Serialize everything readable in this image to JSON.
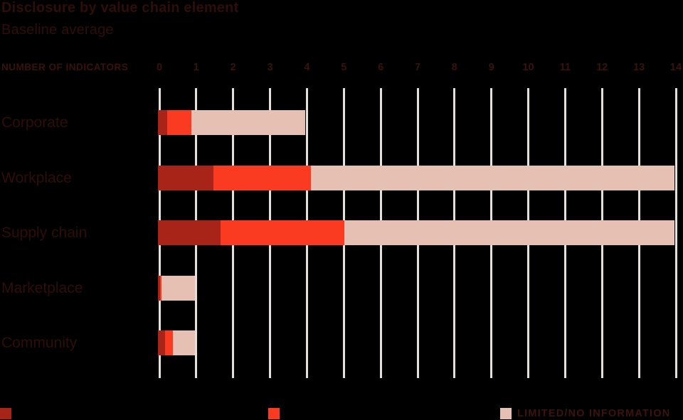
{
  "header": {
    "title": "Disclosure by value chain element",
    "subtitle": "Baseline average"
  },
  "chart_data": {
    "type": "bar",
    "orientation": "horizontal",
    "stacked": true,
    "title": "Disclosure by value chain element",
    "subtitle": "Baseline average",
    "xlabel": "NUMBER OF INDICATORS",
    "xlim": [
      0,
      14
    ],
    "xticks": [
      0,
      1,
      2,
      3,
      4,
      5,
      6,
      7,
      8,
      9,
      10,
      11,
      12,
      13,
      14
    ],
    "grid": true,
    "legend_position": "bottom",
    "categories": [
      "Corporate",
      "Workplace",
      "Supply chain",
      "Marketplace",
      "Community"
    ],
    "series": [
      {
        "name": "",
        "color": "#a82318",
        "values": [
          0.25,
          1.5,
          1.7,
          0.05,
          0.2
        ]
      },
      {
        "name": "",
        "color": "#fb3a22",
        "values": [
          0.65,
          2.65,
          3.35,
          0.05,
          0.2
        ]
      },
      {
        "name": "LIMITED/NO INFORMATION",
        "color": "#e6c1b3",
        "values": [
          3.1,
          9.85,
          8.95,
          0.9,
          0.6
        ]
      }
    ],
    "totals": [
      4.0,
      14.0,
      14.0,
      1.0,
      1.0
    ]
  },
  "legend": {
    "items": [
      {
        "label": "",
        "color": "#a82318"
      },
      {
        "label": "",
        "color": "#fb3a22"
      },
      {
        "label": "LIMITED/NO INFORMATION",
        "color": "#e6c1b3"
      }
    ]
  },
  "colors": {
    "background": "#000000",
    "text": "#2f0e09",
    "tick_text": "#3a120c",
    "gridline": "#e7e0da",
    "series_dark_red": "#a82318",
    "series_bright_red": "#fb3a22",
    "series_pink": "#e6c1b3"
  }
}
